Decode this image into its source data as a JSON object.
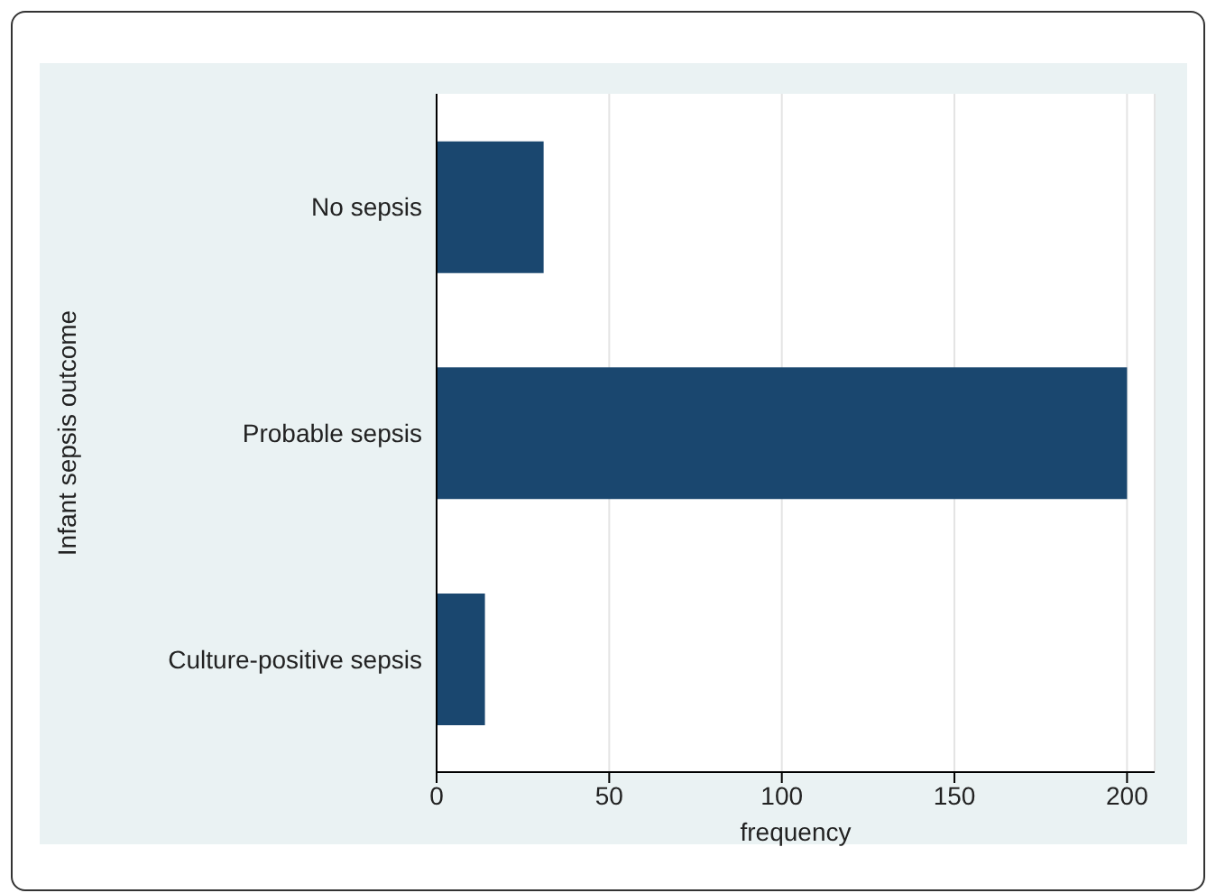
{
  "chart_data": {
    "type": "bar",
    "orientation": "horizontal",
    "categories": [
      "No sepsis",
      "Probable sepsis",
      "Culture-positive sepsis"
    ],
    "values": [
      31,
      200,
      14
    ],
    "color": "#1a476f",
    "xlabel": "frequency",
    "ylabel": "Infant sepsis outcome",
    "xlim": [
      0,
      208
    ],
    "xticks": [
      0,
      50,
      100,
      150,
      200
    ],
    "grid": "x"
  }
}
